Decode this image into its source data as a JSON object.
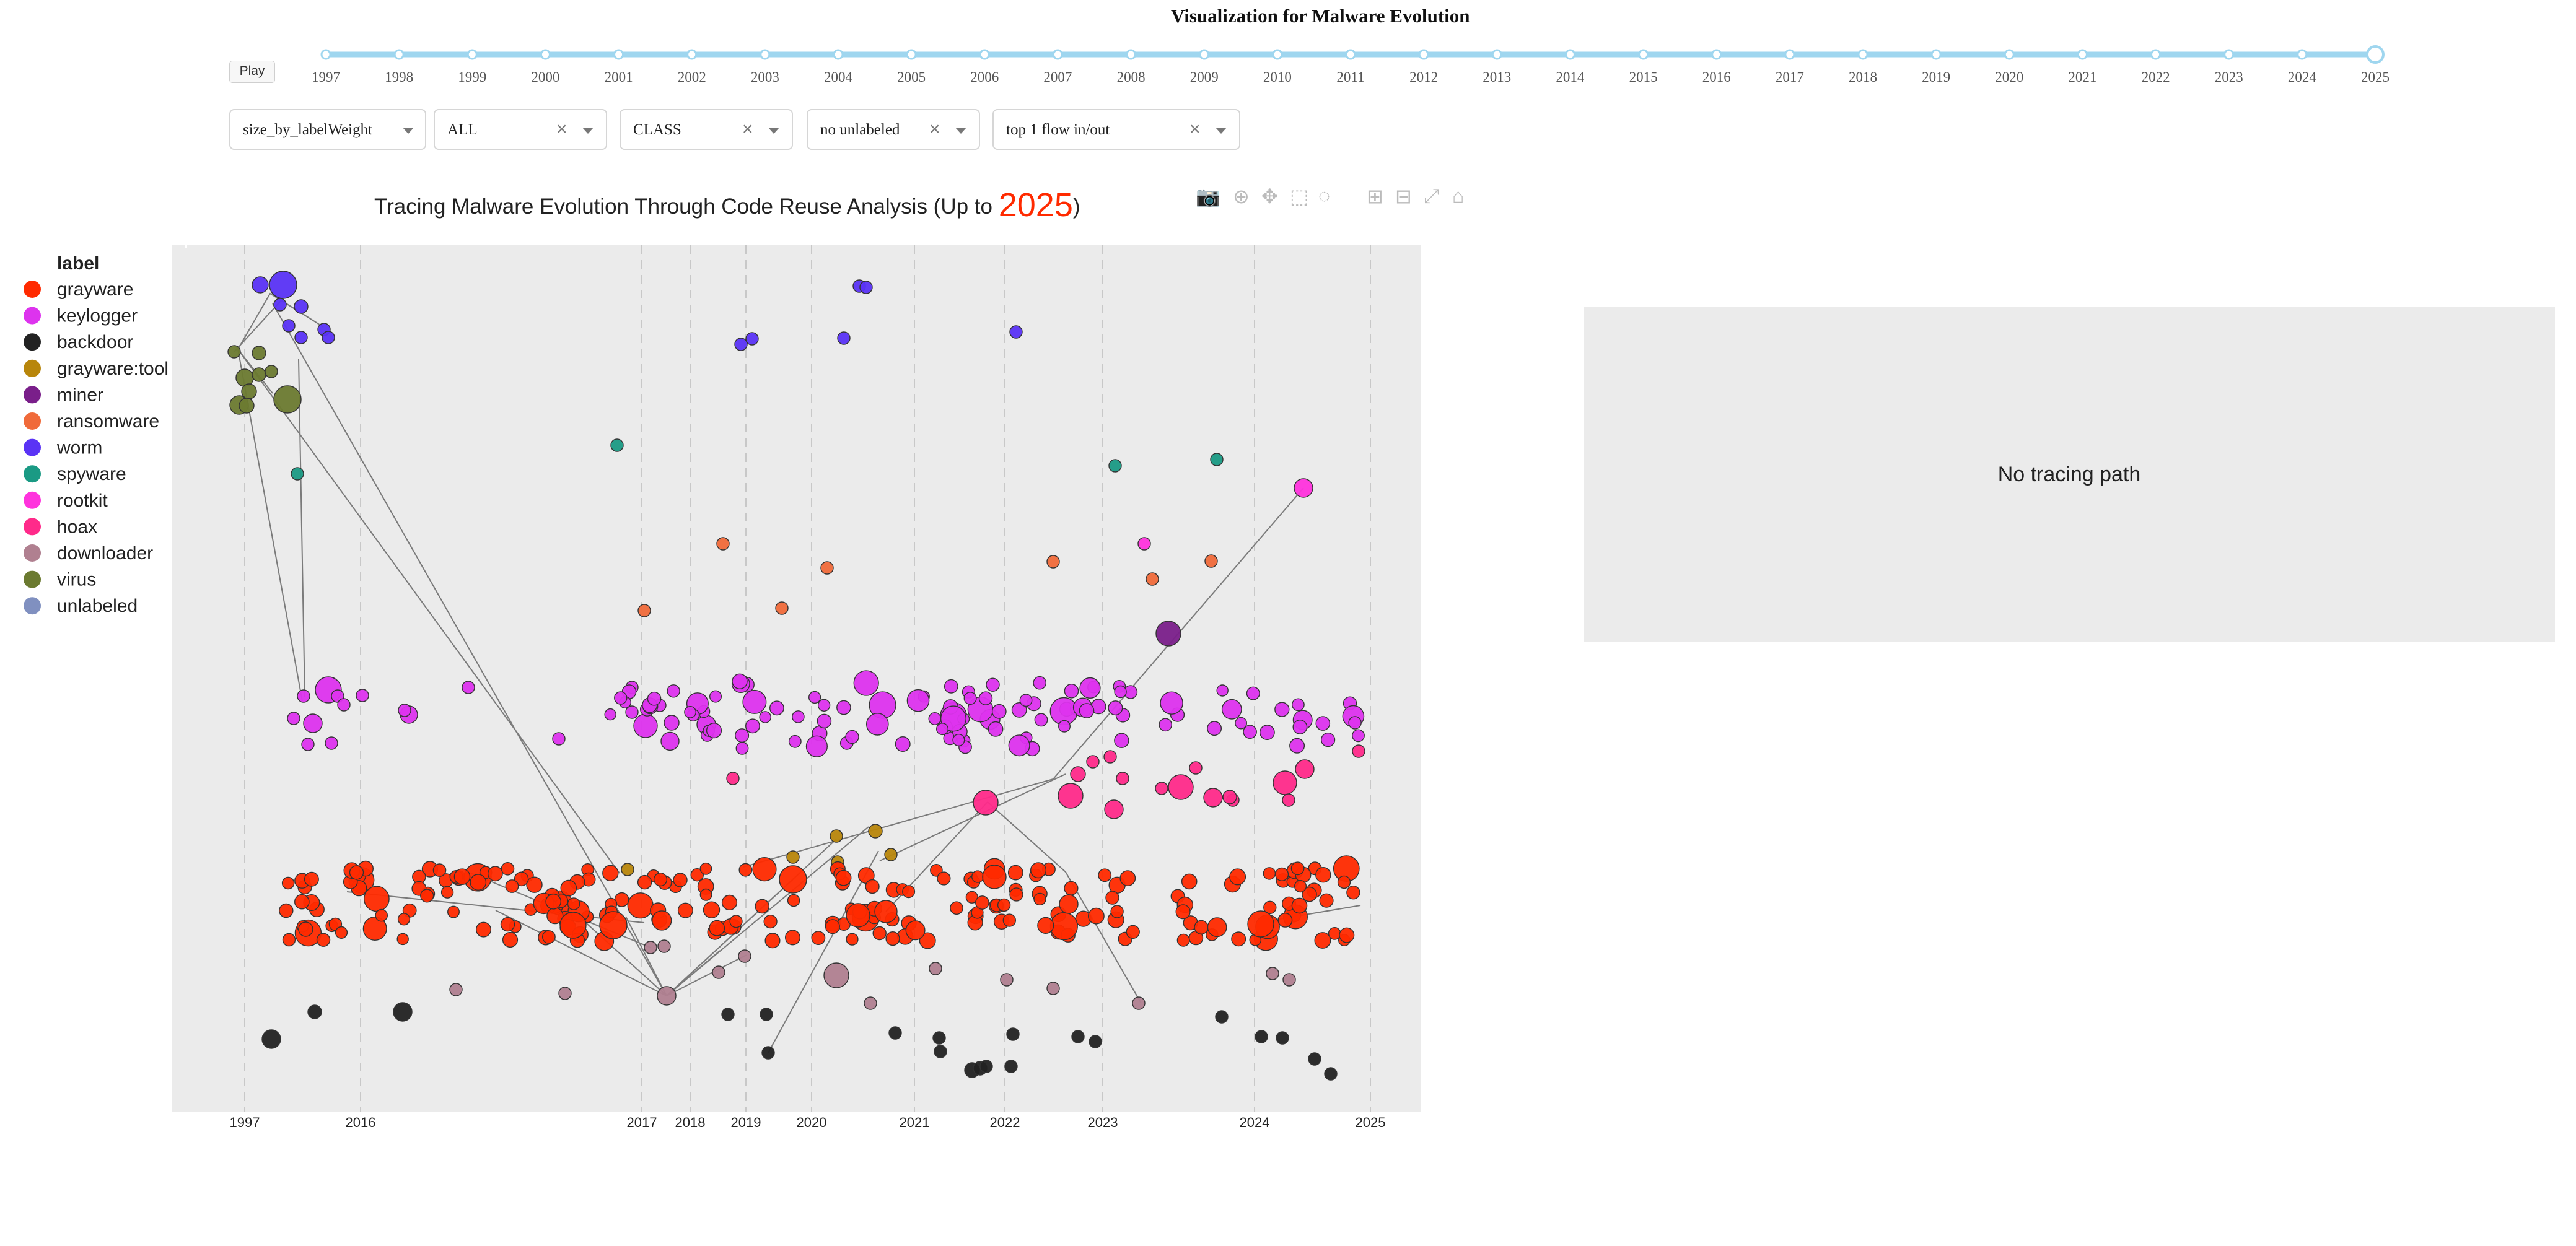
{
  "app": {
    "title": "Visualization for Malware Evolution"
  },
  "controls": {
    "play_label": "Play"
  },
  "timeline": {
    "years": [
      "1997",
      "1998",
      "1999",
      "2000",
      "2001",
      "2002",
      "2003",
      "2004",
      "2005",
      "2006",
      "2007",
      "2008",
      "2009",
      "2010",
      "2011",
      "2012",
      "2013",
      "2014",
      "2015",
      "2016",
      "2017",
      "2018",
      "2019",
      "2020",
      "2021",
      "2022",
      "2023",
      "2024",
      "2025"
    ],
    "selected": "2025",
    "track_color": "#9fd6ef"
  },
  "filters": [
    {
      "value": "size_by_labelWeight",
      "clearable": false
    },
    {
      "value": "ALL",
      "clearable": true
    },
    {
      "value": "CLASS",
      "clearable": true
    },
    {
      "value": "no unlabeled",
      "clearable": true
    },
    {
      "value": "top 1 flow in/out",
      "clearable": true
    }
  ],
  "chart": {
    "title_prefix": "Tracing Malware Evolution Through Code Reuse Analysis (Up to ",
    "title_year": "2025",
    "title_suffix": ")"
  },
  "side_panel": {
    "message": "No tracing path"
  },
  "chart_data": {
    "type": "scatter",
    "legend_title": "label",
    "legend_position": "left",
    "grid": false,
    "background": "#ebebeb",
    "x_ticks": [
      "1997",
      "2016",
      "2017",
      "2018",
      "2019",
      "2020",
      "2021",
      "2022",
      "2023",
      "2024",
      "2025"
    ],
    "categories": [
      {
        "name": "grayware",
        "color": "#ff2a00"
      },
      {
        "name": "keylogger",
        "color": "#dd33ee"
      },
      {
        "name": "backdoor",
        "color": "#222222"
      },
      {
        "name": "grayware:tool",
        "color": "#b8860b"
      },
      {
        "name": "miner",
        "color": "#7a1f8a"
      },
      {
        "name": "ransomware",
        "color": "#f06a3a"
      },
      {
        "name": "worm",
        "color": "#5a33f5"
      },
      {
        "name": "spyware",
        "color": "#1a9a84"
      },
      {
        "name": "rootkit",
        "color": "#ff33dd"
      },
      {
        "name": "hoax",
        "color": "#ff2a8a"
      },
      {
        "name": "downloader",
        "color": "#b08090"
      },
      {
        "name": "virus",
        "color": "#6b7a30"
      },
      {
        "name": "unlabeled",
        "color": "#8090c0"
      }
    ]
  }
}
